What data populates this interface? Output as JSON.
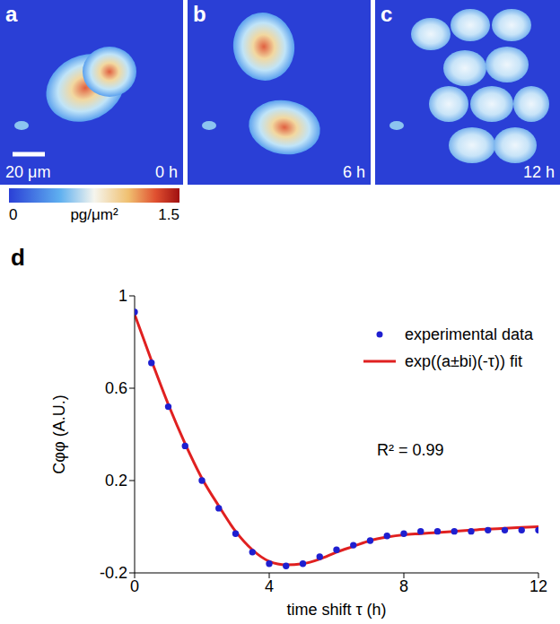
{
  "panels": [
    {
      "label": "a",
      "time": "0 h",
      "scale_bar": "20 μm"
    },
    {
      "label": "b",
      "time": "6 h"
    },
    {
      "label": "c",
      "time": "12 h"
    }
  ],
  "colorbar": {
    "range": [
      0,
      1.5
    ],
    "ticks": [
      0,
      1.5
    ],
    "unit": "pg/μm²"
  },
  "chart_data": {
    "type": "line",
    "panel_label": "d",
    "x_label": "time shift τ (h)",
    "y_label": "Cφφ (A.U.)",
    "x": [
      0,
      0.5,
      1,
      1.5,
      2,
      2.5,
      3,
      3.5,
      4,
      4.5,
      5,
      5.5,
      6,
      6.5,
      7,
      7.5,
      8,
      8.5,
      9,
      9.5,
      10,
      10.5,
      11,
      11.5,
      12
    ],
    "series": [
      {
        "name": "experimental data",
        "color": "#1f1fd0",
        "marker": "dot",
        "line_style": "none",
        "values": [
          0.93,
          0.71,
          0.52,
          0.35,
          0.2,
          0.08,
          -0.03,
          -0.11,
          -0.16,
          -0.17,
          -0.16,
          -0.13,
          -0.1,
          -0.08,
          -0.06,
          -0.04,
          -0.03,
          -0.02,
          -0.02,
          -0.02,
          -0.02,
          -0.015,
          -0.015,
          -0.015,
          -0.015
        ]
      },
      {
        "name": "exp((a±bi)(-τ)) fit",
        "color": "#e02020",
        "line_style": "solid",
        "values": [
          0.92,
          0.72,
          0.53,
          0.36,
          0.21,
          0.09,
          -0.02,
          -0.1,
          -0.15,
          -0.165,
          -0.16,
          -0.14,
          -0.11,
          -0.085,
          -0.06,
          -0.045,
          -0.035,
          -0.03,
          -0.025,
          -0.02,
          -0.015,
          -0.01,
          -0.007,
          -0.003,
          0
        ]
      }
    ],
    "xlim": [
      0,
      12
    ],
    "ylim": [
      -0.2,
      1
    ],
    "xticks": [
      0,
      4,
      8,
      12
    ],
    "yticks": [
      -0.2,
      0.2,
      0.6,
      1
    ],
    "legend": "upper right",
    "annotations": [
      {
        "text": "R² = 0.99"
      }
    ]
  }
}
